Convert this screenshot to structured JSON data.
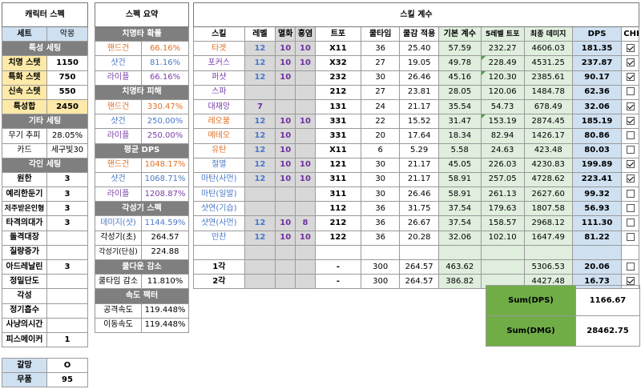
{
  "char": {
    "title": "캐릭터 스펙",
    "set_label": "세트",
    "set_value": "악몽",
    "special_header": "특성 세팅",
    "stats": [
      {
        "label": "치명 스텟",
        "value": "1150"
      },
      {
        "label": "특화 스텟",
        "value": "750"
      },
      {
        "label": "신속 스텟",
        "value": "550"
      }
    ],
    "total_label": "특성합",
    "total_value": "2450",
    "etc_header": "기타 세팅",
    "weapon_label": "무기 추피",
    "weapon_value": "28.05%",
    "card_label": "카드",
    "card_value": "세구빛30",
    "engrave_header": "각인 세팅",
    "engraves": [
      {
        "label": "원한",
        "value": "3"
      },
      {
        "label": "예리한둔기",
        "value": "3"
      },
      {
        "label": "저주받은인형",
        "value": "3"
      },
      {
        "label": "타격의대가",
        "value": "3"
      },
      {
        "label": "돌격대장",
        "value": ""
      },
      {
        "label": "질량증가",
        "value": ""
      },
      {
        "label": "아드레날린",
        "value": "3"
      },
      {
        "label": "정밀단도",
        "value": ""
      },
      {
        "label": "각성",
        "value": ""
      },
      {
        "label": "정기흡수",
        "value": ""
      },
      {
        "label": "사냥의시간",
        "value": ""
      },
      {
        "label": "피스메이커",
        "value": "1"
      }
    ],
    "extra": [
      {
        "label": "갈망",
        "value": "O"
      },
      {
        "label": "무품",
        "value": "95"
      }
    ]
  },
  "summary": {
    "title": "스펙 요약",
    "crit_header": "치명타 확률",
    "crit_rows": [
      {
        "label": "핸드건",
        "value": "66.16%"
      },
      {
        "label": "샷건",
        "value": "81.16%"
      },
      {
        "label": "라이플",
        "value": "66.16%"
      }
    ],
    "critdmg_header": "치명타 피해",
    "critdmg_rows": [
      {
        "label": "핸드건",
        "value": "330.47%"
      },
      {
        "label": "샷건",
        "value": "250.00%"
      },
      {
        "label": "라이플",
        "value": "250.00%"
      }
    ],
    "avgdps_header": "평균 DPS",
    "avgdps_rows": [
      {
        "label": "핸드건",
        "value": "1048.17%"
      },
      {
        "label": "샷건",
        "value": "1068.71%"
      },
      {
        "label": "라이플",
        "value": "1208.87%"
      }
    ],
    "awaken_header": "각성기 스펙",
    "awaken_rows": [
      {
        "label": "데미지(샷)",
        "value": "1144.59%"
      },
      {
        "label": "각성기(초)",
        "value": "264.57"
      },
      {
        "label": "각성기(단심)",
        "value": "224.88"
      }
    ],
    "cd_header": "쿨다운 감소",
    "cd_label": "쿨타임 감소",
    "cd_value": "11.810%",
    "speed_header": "속도 팩터",
    "speed_rows": [
      {
        "label": "공격속도",
        "value": "119.448%"
      },
      {
        "label": "이동속도",
        "value": "119.448%"
      }
    ]
  },
  "skills": {
    "title": "스킬 계수",
    "headers": [
      "스킬",
      "레벨",
      "멸화",
      "홍염",
      "트포",
      "쿨타임",
      "쿨감 적용",
      "기본 계수",
      "5레벨 트포",
      "최종 데미지",
      "DPS",
      "CHK"
    ],
    "rows": [
      {
        "name": "타겟",
        "cls": "handgun",
        "lv": "12",
        "m": "10",
        "h": "10",
        "tp": "X11",
        "cd": "36",
        "cda": "25.40",
        "base": "57.59",
        "tp5": "232.27",
        "fin": "4606.03",
        "dps": "181.35",
        "chk": true
      },
      {
        "name": "포커스",
        "cls": "rifle",
        "lv": "12",
        "m": "10",
        "h": "10",
        "tp": "X32",
        "cd": "27",
        "cda": "19.05",
        "base": "49.78",
        "tp5": "228.49",
        "fin": "4531.25",
        "dps": "237.87",
        "chk": true
      },
      {
        "name": "퍼샷",
        "cls": "rifle",
        "lv": "12",
        "m": "10",
        "h": "",
        "tp": "232",
        "cd": "30",
        "cda": "26.46",
        "base": "45.16",
        "tp5": "120.30",
        "fin": "2385.61",
        "dps": "90.17",
        "chk": true
      },
      {
        "name": "스파",
        "cls": "rifle",
        "lv": "",
        "m": "",
        "h": "",
        "tp": "212",
        "cd": "27",
        "cda": "23.81",
        "base": "28.05",
        "tp5": "120.06",
        "fin": "1484.78",
        "dps": "62.36",
        "chk": false
      },
      {
        "name": "대재앙",
        "cls": "rifle",
        "lv": "7",
        "m": "",
        "h": "",
        "tp": "131",
        "cd": "24",
        "cda": "21.17",
        "base": "35.54",
        "tp5": "54.73",
        "fin": "678.49",
        "dps": "32.06",
        "chk": true
      },
      {
        "name": "레오불",
        "cls": "handgun",
        "lv": "12",
        "m": "10",
        "h": "10",
        "tp": "331",
        "cd": "22",
        "cda": "15.52",
        "base": "31.47",
        "tp5": "153.19",
        "fin": "2874.45",
        "dps": "185.19",
        "chk": true
      },
      {
        "name": "메테오",
        "cls": "handgun",
        "lv": "12",
        "m": "10",
        "h": "",
        "tp": "331",
        "cd": "20",
        "cda": "17.64",
        "base": "18.34",
        "tp5": "82.94",
        "fin": "1426.17",
        "dps": "80.86",
        "chk": false
      },
      {
        "name": "유탄",
        "cls": "handgun",
        "lv": "12",
        "m": "10",
        "h": "",
        "tp": "X11",
        "cd": "6",
        "cda": "5.29",
        "base": "5.58",
        "tp5": "24.63",
        "fin": "423.48",
        "dps": "80.03",
        "chk": false
      },
      {
        "name": "절멸",
        "cls": "shotgun",
        "lv": "12",
        "m": "10",
        "h": "10",
        "tp": "121",
        "cd": "30",
        "cda": "21.17",
        "base": "45.05",
        "tp5": "226.03",
        "fin": "4230.83",
        "dps": "199.89",
        "chk": true
      },
      {
        "name": "마탄(사먼)",
        "cls": "shotgun",
        "lv": "12",
        "m": "10",
        "h": "10",
        "tp": "311",
        "cd": "30",
        "cda": "21.17",
        "base": "58.91",
        "tp5": "257.05",
        "fin": "4728.62",
        "dps": "223.41",
        "chk": true
      },
      {
        "name": "마탄(일발)",
        "cls": "shotgun",
        "lv": "",
        "m": "",
        "h": "",
        "tp": "311",
        "cd": "30",
        "cda": "26.46",
        "base": "58.91",
        "tp5": "261.13",
        "fin": "2627.60",
        "dps": "99.32",
        "chk": false
      },
      {
        "name": "샷연(기습)",
        "cls": "shotgun",
        "lv": "",
        "m": "",
        "h": "",
        "tp": "112",
        "cd": "36",
        "cda": "31.75",
        "base": "37.54",
        "tp5": "179.63",
        "fin": "1807.58",
        "dps": "56.93",
        "chk": false
      },
      {
        "name": "샷연(사먼)",
        "cls": "shotgun",
        "lv": "12",
        "m": "10",
        "h": "8",
        "tp": "212",
        "cd": "36",
        "cda": "26.67",
        "base": "37.54",
        "tp5": "158.57",
        "fin": "2968.12",
        "dps": "111.30",
        "chk": false
      },
      {
        "name": "만찬",
        "cls": "shotgun",
        "lv": "12",
        "m": "10",
        "h": "10",
        "tp": "122",
        "cd": "36",
        "cda": "20.28",
        "base": "32.06",
        "tp5": "102.10",
        "fin": "1647.49",
        "dps": "81.22",
        "chk": false
      },
      {
        "name": "",
        "cls": "",
        "lv": "",
        "m": "",
        "h": "",
        "tp": "",
        "cd": "",
        "cda": "",
        "base": "",
        "tp5": "",
        "fin": "",
        "dps": "",
        "chk": false
      },
      {
        "name": "1각",
        "cls": "b",
        "lv": "",
        "m": "",
        "h": "",
        "tp": "-",
        "cd": "300",
        "cda": "264.57",
        "base": "463.62",
        "tp5": "",
        "fin": "5306.53",
        "dps": "20.06",
        "chk": false
      },
      {
        "name": "2각",
        "cls": "b",
        "lv": "",
        "m": "",
        "h": "",
        "tp": "-",
        "cd": "300",
        "cda": "264.57",
        "base": "386.82",
        "tp5": "",
        "fin": "4427.48",
        "dps": "16.73",
        "chk": true
      }
    ],
    "sum_dps_label": "Sum(DPS)",
    "sum_dps_value": "1166.67",
    "sum_dmg_label": "Sum(DMG)",
    "sum_dmg_value": "28462.75"
  }
}
